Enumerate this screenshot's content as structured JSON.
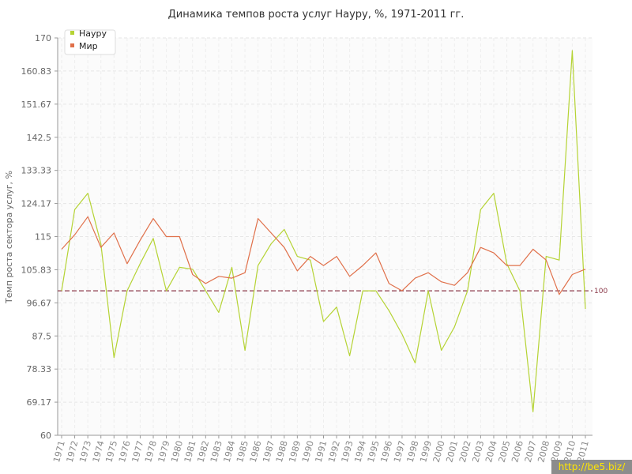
{
  "chart_data": {
    "type": "line",
    "title": "Динамика темпов роста услуг Науру, %, 1971-2011 гг.",
    "ylabel": "Темп роста сектора услуг, %",
    "xlabel": "",
    "ylim": [
      60,
      170
    ],
    "yticks": [
      "60",
      "69.17",
      "78.33",
      "87.5",
      "96.67",
      "105.83",
      "115",
      "124.17",
      "133.33",
      "142.5",
      "151.67",
      "160.83",
      "170"
    ],
    "categories": [
      "1971",
      "1972",
      "1973",
      "1974",
      "1975",
      "1976",
      "1977",
      "1978",
      "1979",
      "1980",
      "1981",
      "1982",
      "1983",
      "1984",
      "1985",
      "1986",
      "1987",
      "1988",
      "1989",
      "1990",
      "1991",
      "1992",
      "1993",
      "1994",
      "1995",
      "1996",
      "1997",
      "1998",
      "1999",
      "2000",
      "2001",
      "2002",
      "2003",
      "2004",
      "2005",
      "2006",
      "2007",
      "2008",
      "2009",
      "2010",
      "2011"
    ],
    "series": [
      {
        "name": "Науру",
        "color": "#b5d334",
        "values": [
          100,
          122.5,
          127,
          113,
          81.5,
          100,
          107.5,
          114.5,
          100,
          106.5,
          106,
          100,
          94,
          106.5,
          83.5,
          107,
          113,
          117,
          109.5,
          108.5,
          91.5,
          95.5,
          82,
          100,
          100,
          94.5,
          88,
          80,
          100,
          83.5,
          90,
          100,
          122.5,
          127,
          107.5,
          100,
          66.5,
          109.5,
          108.5,
          166.5,
          95
        ]
      },
      {
        "name": "Мир",
        "color": "#e0704a",
        "values": [
          111.5,
          115.5,
          120.5,
          112,
          116,
          107.5,
          114,
          120,
          115,
          115,
          104.5,
          102,
          104,
          103.5,
          105,
          120,
          116,
          112,
          105.5,
          109.5,
          107,
          109.5,
          104,
          107,
          110.5,
          102,
          100,
          103.5,
          105,
          102.5,
          101.5,
          105,
          112,
          110.5,
          107,
          107,
          111.5,
          108.5,
          99,
          104.5,
          106
        ]
      }
    ],
    "reference_line": {
      "value": 100,
      "label": "100",
      "color": "#8b3a4a"
    },
    "grid": true,
    "legend": "top-left"
  },
  "watermark": {
    "text": "http://be5.biz/"
  }
}
